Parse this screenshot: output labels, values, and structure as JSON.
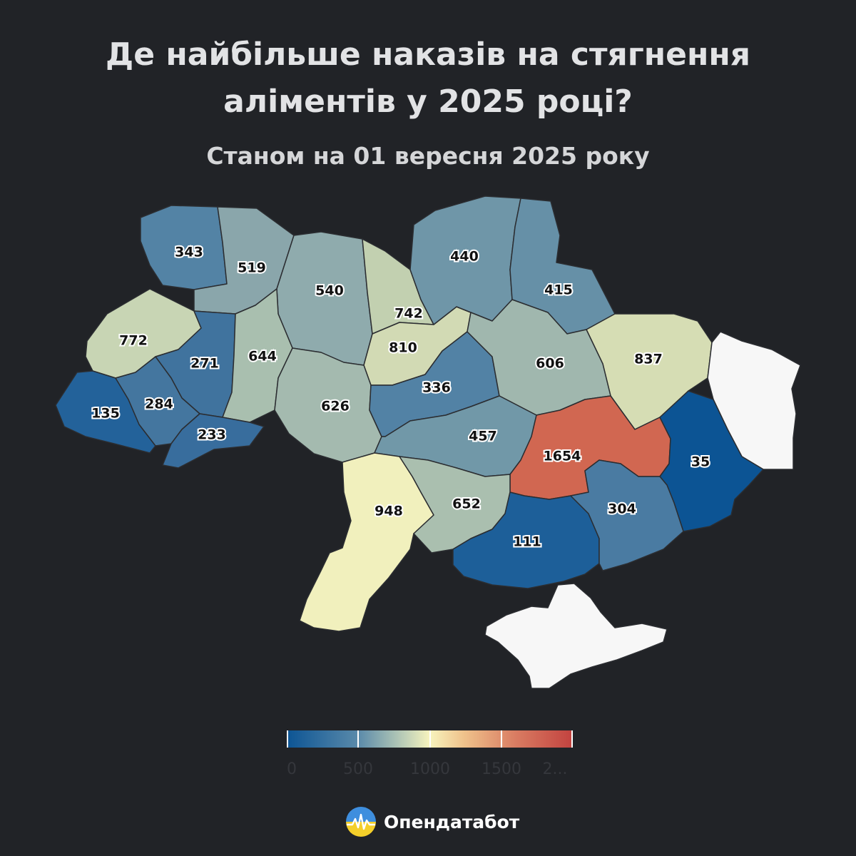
{
  "header": {
    "title_line1": "Де найбільше наказів на стягнення",
    "title_line2": "аліментів у 2025 році?",
    "subtitle": "Станом на 01 вересня 2025 року"
  },
  "map_data": {
    "regions": [
      {
        "id": "volyn",
        "value": 343,
        "color": "#5383a5"
      },
      {
        "id": "rivne",
        "value": 519,
        "color": "#8aa6ab"
      },
      {
        "id": "zhytomyr",
        "value": 540,
        "color": "#8fabad"
      },
      {
        "id": "kyiv",
        "value": 742,
        "color": "#c2d0b0"
      },
      {
        "id": "kyiv-city",
        "value": 810,
        "color": "#d2dab4"
      },
      {
        "id": "chernihiv",
        "value": 440,
        "color": "#6f96a8"
      },
      {
        "id": "sumy",
        "value": 415,
        "color": "#6690a7"
      },
      {
        "id": "kharkiv",
        "value": 837,
        "color": "#d6ddb4"
      },
      {
        "id": "luhansk",
        "value": null,
        "color": "#f7f7f7"
      },
      {
        "id": "lviv",
        "value": 772,
        "color": "#c8d5b4"
      },
      {
        "id": "ternopil",
        "value": 271,
        "color": "#40739e"
      },
      {
        "id": "khmelnytskyi",
        "value": 644,
        "color": "#a9bfaf"
      },
      {
        "id": "vinnytsia",
        "value": 626,
        "color": "#a4baaf"
      },
      {
        "id": "cherkasy",
        "value": 336,
        "color": "#5282a5"
      },
      {
        "id": "poltava",
        "value": 606,
        "color": "#a0b7ae"
      },
      {
        "id": "zakarpattia",
        "value": 135,
        "color": "#23629a"
      },
      {
        "id": "ivano-frankivsk",
        "value": 284,
        "color": "#44769f"
      },
      {
        "id": "chernivtsi",
        "value": 233,
        "color": "#386d9d"
      },
      {
        "id": "kirovohrad",
        "value": 457,
        "color": "#7198a8"
      },
      {
        "id": "dnipropetrovsk",
        "value": 1654,
        "color": "#d16751"
      },
      {
        "id": "donetsk",
        "value": 35,
        "color": "#0c5494"
      },
      {
        "id": "odesa",
        "value": 948,
        "color": "#f1f0bd"
      },
      {
        "id": "mykolaiv",
        "value": 652,
        "color": "#aabfaf"
      },
      {
        "id": "kherson",
        "value": 111,
        "color": "#1d5f99"
      },
      {
        "id": "zaporizhzhia",
        "value": 304,
        "color": "#4a7ba2"
      },
      {
        "id": "crimea",
        "value": null,
        "color": "#f7f7f7"
      }
    ]
  },
  "legend": {
    "ticks": [
      "0",
      "500",
      "1000",
      "1500",
      "2..."
    ],
    "colors": [
      "#0c5494",
      "#f7f3bd",
      "#c2423f"
    ]
  },
  "brand": {
    "name": "Опендатабот",
    "icon": "opendatabot-logo-icon"
  }
}
